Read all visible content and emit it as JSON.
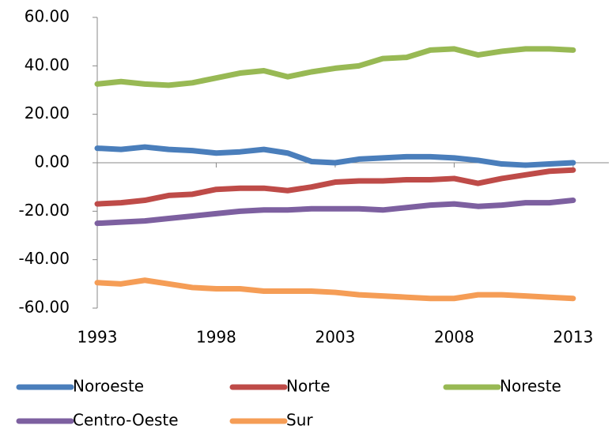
{
  "chart_data": {
    "type": "line",
    "x": [
      1993,
      1994,
      1995,
      1996,
      1997,
      1998,
      1999,
      2000,
      2001,
      2002,
      2003,
      2004,
      2005,
      2006,
      2007,
      2008,
      2009,
      2010,
      2011,
      2012,
      2013
    ],
    "xlim": [
      1993,
      2014.5
    ],
    "xticks": [
      1993,
      1998,
      2003,
      2008,
      2013
    ],
    "ylim": [
      -60,
      60
    ],
    "yticks": [
      {
        "value": -60,
        "label": "-60.00"
      },
      {
        "value": -40,
        "label": "-40.00"
      },
      {
        "value": -20,
        "label": "-20.00"
      },
      {
        "value": 0,
        "label": "0.00"
      },
      {
        "value": 20,
        "label": "20.00"
      },
      {
        "value": 40,
        "label": "40.00"
      },
      {
        "value": 60,
        "label": "60.00"
      }
    ],
    "series": [
      {
        "name": "Noroeste",
        "color": "#4a7ebb",
        "values": [
          6,
          5.5,
          6.5,
          5.5,
          5,
          4,
          4.5,
          5.5,
          4,
          0.5,
          0,
          1.5,
          2,
          2.5,
          2.5,
          2,
          1,
          -0.5,
          -1,
          -0.5,
          0
        ]
      },
      {
        "name": "Norte",
        "color": "#be4b48",
        "values": [
          -17,
          -16.5,
          -15.5,
          -13.5,
          -13,
          -11,
          -10.5,
          -10.5,
          -11.5,
          -10,
          -8,
          -7.5,
          -7.5,
          -7,
          -7,
          -6.5,
          -8.5,
          -6.5,
          -5,
          -3.5,
          -3
        ]
      },
      {
        "name": "Noreste",
        "color": "#98b954",
        "values": [
          32.5,
          33.5,
          32.5,
          32,
          33,
          35,
          37,
          38,
          35.5,
          37.5,
          39,
          40,
          43,
          43.5,
          46.5,
          47,
          44.5,
          46,
          47,
          47,
          46.5
        ]
      },
      {
        "name": "Centro-Oeste",
        "color": "#7d60a0",
        "values": [
          -25,
          -24.5,
          -24,
          -23,
          -22,
          -21,
          -20,
          -19.5,
          -19.5,
          -19,
          -19,
          -19,
          -19.5,
          -18.5,
          -17.5,
          -17,
          -18,
          -17.5,
          -16.5,
          -16.5,
          -15.5
        ]
      },
      {
        "name": "Sur",
        "color": "#f59d56",
        "values": [
          -49.5,
          -50,
          -48.5,
          -50,
          -51.5,
          -52,
          -52,
          -53,
          -53,
          -53,
          -53.5,
          -54.5,
          -55,
          -55.5,
          -56,
          -56,
          -54.5,
          -54.5,
          -55,
          -55.5,
          -56
        ]
      }
    ]
  }
}
